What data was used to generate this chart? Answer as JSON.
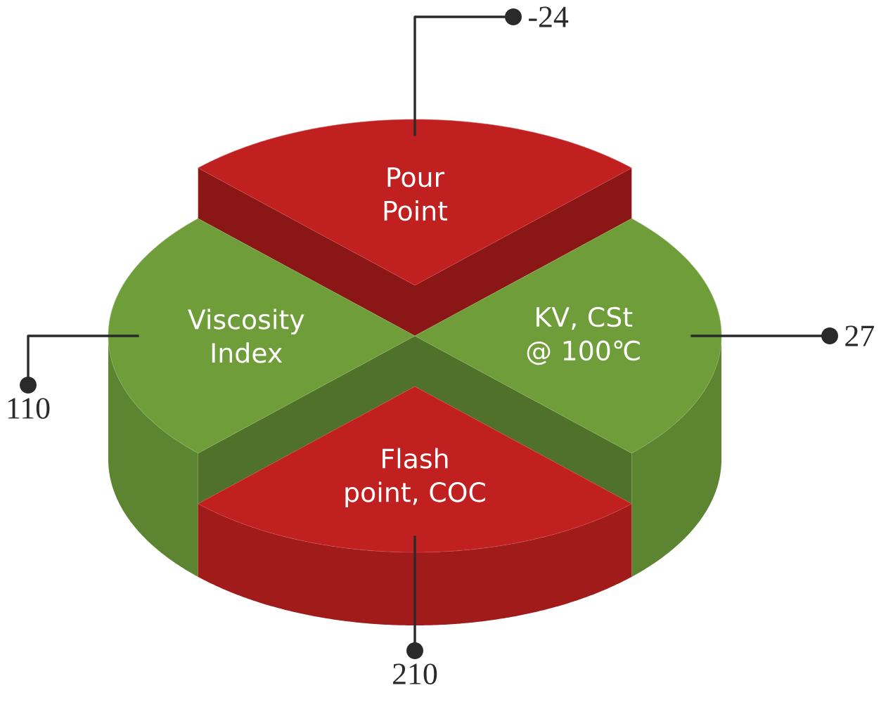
{
  "chart_data": {
    "type": "other",
    "categories": [
      "Pour Point",
      "KV, CSt @ 100℃",
      "Flash point, COC",
      "Viscosity Index"
    ],
    "values": [
      -24,
      27,
      210,
      110
    ],
    "colors": [
      "#c0201f",
      "#6f9d3a",
      "#c0201f",
      "#6f9d3a"
    ],
    "data_labels": true
  }
}
